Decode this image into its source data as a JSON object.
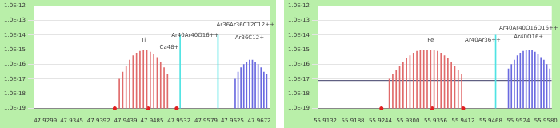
{
  "chart_data": [
    {
      "type": "bar",
      "log": "y",
      "grid": true,
      "xlim": [
        47.928,
        47.969
      ],
      "xticks": [
        47.9299,
        47.9345,
        47.9392,
        47.9439,
        47.9485,
        47.9532,
        47.9579,
        47.9625,
        47.9672
      ],
      "ylim": [
        1e-19,
        1e-12
      ],
      "yticks": [
        {
          "value": 1e-19,
          "label": "1.0E-19"
        },
        {
          "value": 1e-18,
          "label": "1.0E-18"
        },
        {
          "value": 1e-17,
          "label": "1.0E-17"
        },
        {
          "value": 1e-16,
          "label": "1.0E-16"
        },
        {
          "value": 1e-15,
          "label": "1.0E-15"
        },
        {
          "value": 1e-14,
          "label": "1.0E-14"
        },
        {
          "value": 1e-13,
          "label": "1.0E-13"
        },
        {
          "value": 1e-12,
          "label": "1.0E-12"
        }
      ],
      "series": [
        {
          "type": "bar",
          "color": "#e06a6a",
          "x": [
            47.9428,
            47.9434,
            47.944,
            47.9446,
            47.9452,
            47.9458,
            47.9464,
            47.947,
            47.9476,
            47.9482,
            47.9488,
            47.9494,
            47.95,
            47.9506,
            47.9512
          ],
          "values": [
            1e-17,
            3e-17,
            8e-17,
            2e-16,
            4e-16,
            6e-16,
            8e-16,
            1e-15,
            9e-16,
            7e-16,
            5e-16,
            3e-16,
            1.5e-16,
            6e-17,
            2e-17
          ]
        },
        {
          "type": "bar",
          "color": "#4fe3e3",
          "x": [
            47.9534,
            47.96
          ],
          "values": [
            1e-14,
            1e-14
          ]
        },
        {
          "type": "bar",
          "color": "#6a6ae0",
          "x": [
            47.963,
            47.9635,
            47.964,
            47.9645,
            47.965,
            47.9655,
            47.966,
            47.9665,
            47.967,
            47.9675,
            47.968,
            47.9685
          ],
          "values": [
            1e-17,
            3e-17,
            6e-17,
            1e-16,
            1.5e-16,
            2e-16,
            2e-16,
            1.5e-16,
            1e-16,
            6e-17,
            3e-17,
            2e-17
          ]
        },
        {
          "type": "scatter",
          "color": "#e02020",
          "marker": "circle",
          "x": [
            47.942,
            47.9478,
            47.9528
          ],
          "values": [
            1e-19,
            1e-19,
            1e-19
          ]
        }
      ],
      "annotations": [
        {
          "text": "Ti",
          "x": 47.947,
          "y": 3e-15
        },
        {
          "text": "Ca48+",
          "x": 47.9515,
          "y": 1e-15
        },
        {
          "text": "Ar40Ar40O16++",
          "x": 47.956,
          "y": 6e-15
        },
        {
          "text": "Ar36Ar36C12C12++",
          "x": 47.9655,
          "y": 3e-14
        },
        {
          "text": "Ar36C12+",
          "x": 47.9655,
          "y": 4e-15
        }
      ]
    },
    {
      "type": "bar",
      "log": "y",
      "grid": true,
      "xlim": [
        55.9118,
        55.9592
      ],
      "xticks": [
        55.9132,
        55.9188,
        55.9244,
        {
          "value": 55.93,
          "label": "55.9300"
        },
        55.9356,
        55.9412,
        55.9468,
        55.9524,
        {
          "value": 55.958,
          "label": "55.9580"
        }
      ],
      "ylim": [
        1e-19,
        1e-12
      ],
      "yticks": [
        {
          "value": 1e-19,
          "label": "1.0E-19"
        },
        {
          "value": 1e-18,
          "label": "1.0E-18"
        },
        {
          "value": 1e-17,
          "label": "1.0E-17"
        },
        {
          "value": 1e-16,
          "label": "1.0E-16"
        },
        {
          "value": 1e-15,
          "label": "1.0E-15"
        },
        {
          "value": 1e-14,
          "label": "1.0E-14"
        },
        {
          "value": 1e-13,
          "label": "1.0E-13"
        },
        {
          "value": 1e-12,
          "label": "1.0E-12"
        }
      ],
      "series": [
        {
          "type": "bar",
          "color": "#e06a6a",
          "x": [
            55.9262,
            55.9269,
            55.9276,
            55.9283,
            55.929,
            55.9297,
            55.9304,
            55.9311,
            55.9318,
            55.9325,
            55.9332,
            55.9339,
            55.9346,
            55.9353,
            55.936,
            55.9367,
            55.9374,
            55.9381,
            55.9388,
            55.9395,
            55.9402,
            55.9409
          ],
          "values": [
            1e-17,
            2e-17,
            4e-17,
            8e-17,
            1.5e-16,
            2.5e-16,
            4e-16,
            6e-16,
            8e-16,
            9e-16,
            1e-15,
            1e-15,
            1e-15,
            9e-16,
            8e-16,
            6e-16,
            4e-16,
            2.5e-16,
            1.5e-16,
            8e-17,
            4e-17,
            2e-17
          ]
        },
        {
          "type": "bar",
          "color": "#4fe3e3",
          "x": [
            55.9478
          ],
          "values": [
            1e-14
          ]
        },
        {
          "type": "bar",
          "color": "#6a6ae0",
          "x": [
            55.9504,
            55.951,
            55.9516,
            55.9522,
            55.9528,
            55.9534,
            55.954,
            55.9546,
            55.9552,
            55.9558,
            55.9564,
            55.957,
            55.9576,
            55.9582,
            55.9588
          ],
          "values": [
            5e-17,
            1e-16,
            2e-16,
            4e-16,
            6e-16,
            8e-16,
            1e-15,
            1e-15,
            9e-16,
            7e-16,
            5e-16,
            3e-16,
            2e-16,
            1e-16,
            5e-17
          ]
        },
        {
          "type": "line",
          "color": "#3a3a66",
          "line_style": "solid",
          "x": [
            55.9118,
            55.9592
          ],
          "values": [
            8e-18,
            8e-18
          ]
        },
        {
          "type": "scatter",
          "color": "#e02020",
          "marker": "circle",
          "x": [
            55.9246,
            55.9349,
            55.9412
          ],
          "values": [
            1e-19,
            1e-19,
            1e-19
          ]
        }
      ],
      "annotations": [
        {
          "text": "Fe",
          "x": 55.9346,
          "y": 3e-15
        },
        {
          "text": "Ar40Ar36++",
          "x": 55.9452,
          "y": 3e-15
        },
        {
          "text": "Ar40Ar40O16O16++",
          "x": 55.9545,
          "y": 2e-14
        },
        {
          "text": "Ar40O16+",
          "x": 55.9545,
          "y": 5e-15
        }
      ]
    }
  ]
}
